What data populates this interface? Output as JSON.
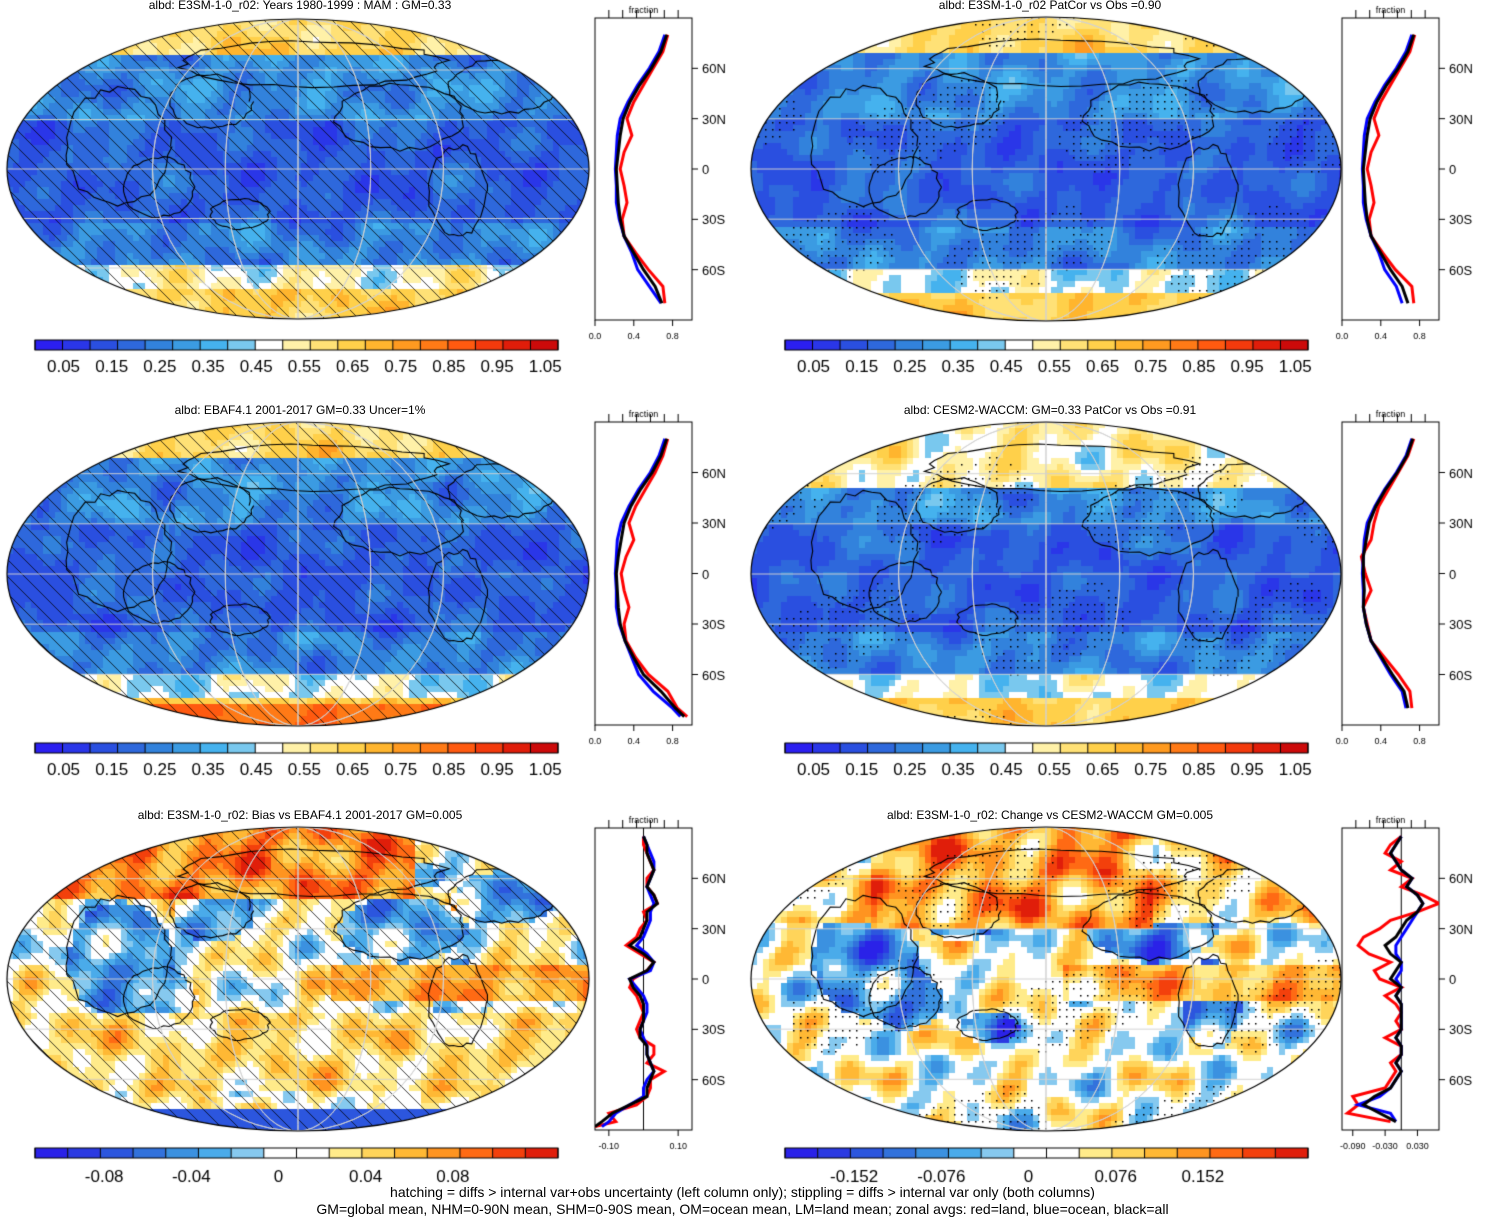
{
  "panels": [
    {
      "title": "albd: E3SM-1-0_r02: Years 1980-1999 : MAM : GM=0.33",
      "scheme": "abs",
      "hatch": true,
      "stipple": false,
      "pattern": "e3sm",
      "colorbar": {
        "ticks": [
          "0.05",
          "0.15",
          "0.25",
          "0.35",
          "0.45",
          "0.55",
          "0.65",
          "0.75",
          "0.85",
          "0.95",
          "1.05"
        ]
      },
      "side": {
        "title": "fraction",
        "xlim": [
          0,
          1.0
        ],
        "xticks": [
          "0.0",
          "0.4",
          "0.8"
        ],
        "xtick_vals": [
          0,
          0.4,
          0.8
        ],
        "zero_line": false,
        "lat_labels": [
          "60N",
          "30N",
          "0",
          "30S",
          "60S"
        ],
        "kind": "abs"
      }
    },
    {
      "title": "albd: E3SM-1-0_r02 PatCor vs Obs =0.90",
      "scheme": "abs",
      "hatch": false,
      "stipple": true,
      "pattern": "e3sm2",
      "colorbar": {
        "ticks": [
          "0.05",
          "0.15",
          "0.25",
          "0.35",
          "0.45",
          "0.55",
          "0.65",
          "0.75",
          "0.85",
          "0.95",
          "1.05"
        ]
      },
      "side": {
        "title": "fraction",
        "xlim": [
          0,
          1.0
        ],
        "xticks": [
          "0.0",
          "0.4",
          "0.8"
        ],
        "xtick_vals": [
          0,
          0.4,
          0.8
        ],
        "zero_line": false,
        "lat_labels": [
          "60N",
          "30N",
          "0",
          "30S",
          "60S"
        ],
        "kind": "abs"
      }
    },
    {
      "title": "albd: EBAF4.1 2001-2017 GM=0.33 Uncer=1%",
      "scheme": "abs",
      "hatch": true,
      "stipple": false,
      "pattern": "ebaf",
      "colorbar": {
        "ticks": [
          "0.05",
          "0.15",
          "0.25",
          "0.35",
          "0.45",
          "0.55",
          "0.65",
          "0.75",
          "0.85",
          "0.95",
          "1.05"
        ]
      },
      "side": {
        "title": "fraction",
        "xlim": [
          0,
          1.0
        ],
        "xticks": [
          "0.0",
          "0.4",
          "0.8"
        ],
        "xtick_vals": [
          0,
          0.4,
          0.8
        ],
        "zero_line": false,
        "lat_labels": [
          "60N",
          "30N",
          "0",
          "30S",
          "60S"
        ],
        "kind": "ebaf"
      }
    },
    {
      "title": "albd: CESM2-WACCM: GM=0.33 PatCor vs Obs =0.91",
      "scheme": "abs",
      "hatch": false,
      "stipple": true,
      "pattern": "cesm",
      "colorbar": {
        "ticks": [
          "0.05",
          "0.15",
          "0.25",
          "0.35",
          "0.45",
          "0.55",
          "0.65",
          "0.75",
          "0.85",
          "0.95",
          "1.05"
        ]
      },
      "side": {
        "title": "fraction",
        "xlim": [
          0,
          1.0
        ],
        "xticks": [
          "0.0",
          "0.4",
          "0.8"
        ],
        "xtick_vals": [
          0,
          0.4,
          0.8
        ],
        "zero_line": false,
        "lat_labels": [
          "60N",
          "30N",
          "0",
          "30S",
          "60S"
        ],
        "kind": "abs"
      }
    },
    {
      "title": "albd: E3SM-1-0_r02: Bias vs EBAF4.1 2001-2017 GM=0.005",
      "scheme": "diff",
      "hatch": true,
      "stipple": false,
      "pattern": "bias",
      "colorbar": {
        "ticks": [
          "-0.08",
          "-0.04",
          "0",
          "0.04",
          "0.08"
        ]
      },
      "side": {
        "title": "fraction",
        "xlim": [
          -0.14,
          0.14
        ],
        "xticks": [
          "-0.10",
          "0.10"
        ],
        "xtick_vals": [
          -0.1,
          0.1
        ],
        "zero_line": true,
        "lat_labels": [
          "60N",
          "30N",
          "0",
          "30S",
          "60S"
        ],
        "kind": "bias"
      }
    },
    {
      "title": "albd: E3SM-1-0_r02: Change vs CESM2-WACCM GM=0.005",
      "scheme": "diff",
      "hatch": false,
      "stipple": true,
      "pattern": "change",
      "colorbar": {
        "ticks": [
          "-0.152",
          "-0.076",
          "0",
          "0.076",
          "0.152"
        ]
      },
      "side": {
        "title": "fraction",
        "xlim": [
          -0.11,
          0.07
        ],
        "xticks": [
          "-0.090",
          "-0.030",
          "0.030"
        ],
        "xtick_vals": [
          -0.09,
          -0.03,
          0.03
        ],
        "zero_line": true,
        "lat_labels": [
          "60N",
          "30N",
          "0",
          "30S",
          "60S"
        ],
        "kind": "change"
      }
    }
  ],
  "footer": {
    "line1": "hatching = diffs > internal var+obs uncertainty (left column only); stippling = diffs > internal var only (both columns)",
    "line2": "GM=global mean, NHM=0-90N mean, SHM=0-90S mean, OM=ocean mean, LM=land mean; zonal avgs: red=land, blue=ocean, black=all"
  },
  "colors": {
    "abs_palette": [
      "#2b1ff0",
      "#2a36e8",
      "#2a4fe0",
      "#2e68dc",
      "#3282dc",
      "#3b9be2",
      "#45b2ee",
      "#79c8ee",
      "#ffffff",
      "#fff1a8",
      "#ffe176",
      "#ffd04a",
      "#ffb52e",
      "#ff9a20",
      "#ff7a16",
      "#ff5a10",
      "#f33a0c",
      "#e01d0a",
      "#cc0a0a"
    ],
    "diff_palette": [
      "#2a22e8",
      "#2b3ae2",
      "#2c56de",
      "#3272dc",
      "#3b91e0",
      "#4aabea",
      "#86c9ef",
      "#ffffff",
      "#ffffff",
      "#ffeb8a",
      "#ffd45a",
      "#ffb834",
      "#ff9420",
      "#ff6a14",
      "#f3400c",
      "#e01e0a"
    ],
    "land_line": "#ff0000",
    "ocean_line": "#0000ff",
    "all_line": "#000000"
  },
  "chart_data": [
    {
      "type": "heatmap",
      "panel": 0,
      "title": "albd: E3SM-1-0_r02: Years 1980-1999 : MAM : GM=0.33",
      "colorbar_range": [
        0,
        1.1
      ],
      "zonal_avg": {
        "lat": [
          -80,
          -70,
          -60,
          -50,
          -40,
          -30,
          -20,
          -10,
          0,
          10,
          20,
          30,
          40,
          50,
          60,
          70,
          80
        ],
        "land": [
          0.72,
          0.7,
          0.55,
          0.42,
          0.3,
          0.28,
          0.33,
          0.3,
          0.26,
          0.3,
          0.38,
          0.33,
          0.4,
          0.5,
          0.6,
          0.7,
          0.75
        ],
        "ocean": [
          0.68,
          0.56,
          0.44,
          0.38,
          0.3,
          0.25,
          0.22,
          0.22,
          0.21,
          0.22,
          0.23,
          0.26,
          0.34,
          0.44,
          0.56,
          0.66,
          0.72
        ],
        "all": [
          0.69,
          0.62,
          0.5,
          0.4,
          0.3,
          0.26,
          0.24,
          0.23,
          0.22,
          0.24,
          0.26,
          0.29,
          0.36,
          0.46,
          0.58,
          0.68,
          0.74
        ]
      }
    },
    {
      "type": "heatmap",
      "panel": 1,
      "title": "albd: E3SM-1-0_r02 PatCor vs Obs =0.90",
      "colorbar_range": [
        0,
        1.1
      ],
      "zonal_avg": {
        "lat": [
          -80,
          -70,
          -60,
          -50,
          -40,
          -30,
          -20,
          -10,
          0,
          10,
          20,
          30,
          40,
          50,
          60,
          70,
          80
        ],
        "land": [
          0.74,
          0.72,
          0.55,
          0.42,
          0.3,
          0.28,
          0.33,
          0.3,
          0.26,
          0.3,
          0.38,
          0.33,
          0.4,
          0.5,
          0.6,
          0.7,
          0.75
        ],
        "ocean": [
          0.62,
          0.56,
          0.44,
          0.38,
          0.3,
          0.25,
          0.22,
          0.22,
          0.21,
          0.22,
          0.23,
          0.26,
          0.34,
          0.44,
          0.56,
          0.66,
          0.72
        ],
        "all": [
          0.68,
          0.62,
          0.5,
          0.4,
          0.3,
          0.26,
          0.24,
          0.23,
          0.22,
          0.24,
          0.26,
          0.29,
          0.36,
          0.46,
          0.58,
          0.68,
          0.74
        ]
      }
    },
    {
      "type": "heatmap",
      "panel": 2,
      "title": "albd: EBAF4.1 2001-2017 GM=0.33 Uncer=1%",
      "colorbar_range": [
        0,
        1.1
      ],
      "zonal_avg": {
        "lat": [
          -85,
          -80,
          -70,
          -60,
          -50,
          -40,
          -30,
          -20,
          -10,
          0,
          10,
          20,
          30,
          40,
          50,
          60,
          70,
          80
        ],
        "land": [
          0.95,
          0.85,
          0.75,
          0.55,
          0.42,
          0.32,
          0.3,
          0.35,
          0.3,
          0.27,
          0.32,
          0.4,
          0.35,
          0.42,
          0.52,
          0.62,
          0.7,
          0.75
        ],
        "ocean": [
          0.88,
          0.8,
          0.6,
          0.45,
          0.38,
          0.31,
          0.25,
          0.22,
          0.22,
          0.21,
          0.22,
          0.23,
          0.27,
          0.35,
          0.45,
          0.57,
          0.66,
          0.72
        ],
        "all": [
          0.92,
          0.83,
          0.68,
          0.5,
          0.4,
          0.31,
          0.26,
          0.24,
          0.23,
          0.22,
          0.24,
          0.27,
          0.3,
          0.37,
          0.47,
          0.59,
          0.68,
          0.74
        ]
      }
    },
    {
      "type": "heatmap",
      "panel": 3,
      "title": "albd: CESM2-WACCM: GM=0.33 PatCor vs Obs =0.91",
      "colorbar_range": [
        0,
        1.1
      ],
      "zonal_avg": {
        "lat": [
          -80,
          -70,
          -60,
          -50,
          -40,
          -30,
          -20,
          -10,
          0,
          10,
          20,
          30,
          40,
          50,
          60,
          70,
          80
        ],
        "land": [
          0.72,
          0.7,
          0.58,
          0.44,
          0.3,
          0.26,
          0.22,
          0.3,
          0.24,
          0.2,
          0.3,
          0.33,
          0.38,
          0.48,
          0.58,
          0.68,
          0.74
        ],
        "ocean": [
          0.66,
          0.62,
          0.5,
          0.4,
          0.3,
          0.25,
          0.22,
          0.22,
          0.21,
          0.22,
          0.23,
          0.26,
          0.34,
          0.44,
          0.56,
          0.66,
          0.72
        ],
        "all": [
          0.68,
          0.64,
          0.52,
          0.41,
          0.3,
          0.25,
          0.22,
          0.23,
          0.22,
          0.22,
          0.25,
          0.28,
          0.35,
          0.45,
          0.57,
          0.67,
          0.73
        ]
      }
    },
    {
      "type": "heatmap",
      "panel": 4,
      "title": "albd: E3SM-1-0_r02: Bias vs EBAF4.1 2001-2017 GM=0.005",
      "colorbar_range": [
        -0.11,
        0.11
      ],
      "zonal_avg": {
        "lat": [
          -88,
          -85,
          -80,
          -75,
          -70,
          -65,
          -60,
          -55,
          -50,
          -45,
          -40,
          -35,
          -30,
          -25,
          -20,
          -15,
          -10,
          -5,
          0,
          5,
          10,
          15,
          20,
          25,
          30,
          35,
          40,
          45,
          50,
          55,
          60,
          65,
          70,
          75,
          80,
          85
        ],
        "land": [
          -0.14,
          -0.08,
          -0.1,
          -0.02,
          0.01,
          0.02,
          0.02,
          0.06,
          0.01,
          0.03,
          0.03,
          -0.01,
          -0.02,
          -0.01,
          0.0,
          -0.01,
          -0.02,
          -0.04,
          -0.03,
          0.01,
          0.03,
          -0.01,
          -0.05,
          -0.02,
          -0.01,
          0.01,
          0.0,
          0.04,
          0.03,
          0.01,
          0.01,
          0.03,
          0.02,
          0.01,
          0.0,
          0.0
        ],
        "ocean": [
          -0.12,
          -0.1,
          -0.08,
          -0.04,
          0.0,
          0.0,
          0.01,
          0.03,
          0.02,
          0.01,
          0.01,
          0.0,
          -0.01,
          0.0,
          0.01,
          0.01,
          0.0,
          -0.02,
          -0.04,
          0.02,
          0.03,
          0.01,
          -0.02,
          0.0,
          0.01,
          0.02,
          0.02,
          0.03,
          0.02,
          0.01,
          0.02,
          0.03,
          0.03,
          0.02,
          0.01,
          0.0
        ],
        "all": [
          -0.14,
          -0.12,
          -0.09,
          -0.04,
          0.01,
          0.01,
          0.02,
          0.03,
          0.02,
          0.01,
          0.01,
          -0.01,
          -0.01,
          0.0,
          0.0,
          0.0,
          -0.01,
          -0.03,
          -0.04,
          0.01,
          0.03,
          0.0,
          -0.04,
          -0.01,
          0.0,
          0.01,
          0.01,
          0.04,
          0.03,
          0.01,
          0.02,
          0.03,
          0.02,
          0.01,
          0.01,
          0.0
        ]
      }
    },
    {
      "type": "heatmap",
      "panel": 5,
      "title": "albd: E3SM-1-0_r02: Change vs CESM2-WACCM GM=0.005",
      "colorbar_range": [
        -0.19,
        0.19
      ],
      "zonal_avg": {
        "lat": [
          -85,
          -80,
          -75,
          -70,
          -65,
          -60,
          -55,
          -50,
          -45,
          -40,
          -35,
          -30,
          -25,
          -20,
          -15,
          -10,
          -5,
          0,
          5,
          10,
          15,
          20,
          25,
          30,
          35,
          40,
          45,
          50,
          55,
          60,
          65,
          70,
          75,
          80,
          85
        ],
        "land": [
          -0.02,
          -0.1,
          -0.08,
          -0.09,
          -0.03,
          -0.02,
          -0.01,
          -0.02,
          0.0,
          0.0,
          -0.03,
          0.0,
          -0.01,
          0.0,
          -0.01,
          -0.03,
          0.0,
          -0.04,
          -0.05,
          -0.02,
          -0.06,
          -0.08,
          -0.07,
          -0.04,
          -0.02,
          0.03,
          0.07,
          0.04,
          0.0,
          0.02,
          -0.02,
          0.0,
          -0.03,
          -0.02,
          0.0
        ],
        "ocean": [
          -0.01,
          -0.02,
          -0.08,
          -0.04,
          -0.02,
          -0.01,
          0.0,
          -0.01,
          0.0,
          0.0,
          -0.01,
          0.0,
          0.0,
          0.0,
          0.0,
          -0.01,
          0.0,
          -0.01,
          0.0,
          0.0,
          -0.01,
          -0.01,
          0.0,
          0.01,
          0.02,
          0.03,
          0.04,
          0.03,
          0.01,
          0.02,
          0.0,
          -0.01,
          -0.02,
          -0.01,
          0.0
        ],
        "all": [
          -0.01,
          -0.04,
          -0.07,
          -0.05,
          -0.02,
          -0.01,
          0.0,
          -0.01,
          0.0,
          0.0,
          -0.01,
          0.0,
          0.0,
          0.0,
          0.0,
          -0.01,
          0.0,
          -0.02,
          -0.01,
          0.0,
          -0.02,
          -0.03,
          -0.01,
          0.0,
          0.01,
          0.03,
          0.04,
          0.03,
          0.01,
          0.02,
          0.0,
          -0.01,
          -0.02,
          -0.01,
          0.0
        ]
      }
    }
  ]
}
